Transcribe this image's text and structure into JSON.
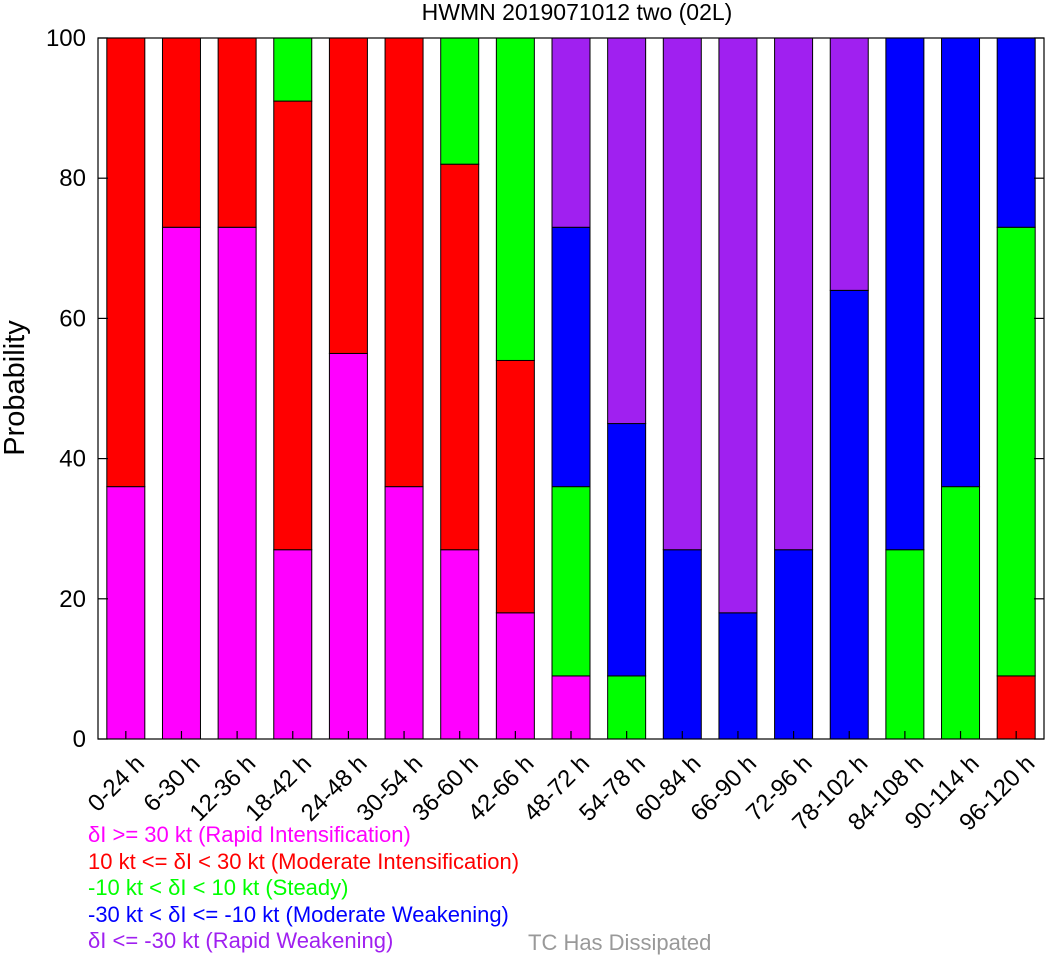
{
  "title": "HWMN 2019071012 two (02L)",
  "chart_data": {
    "type": "bar",
    "stacked": true,
    "title": "HWMN 2019071012 two (02L)",
    "ylabel": "Probability",
    "xlabel": "",
    "ylim": [
      0,
      100
    ],
    "yticks": [
      0,
      20,
      40,
      60,
      80,
      100
    ],
    "categories": [
      "0-24 h",
      "6-30 h",
      "12-36 h",
      "18-42 h",
      "24-48 h",
      "30-54 h",
      "36-60 h",
      "42-66 h",
      "48-72 h",
      "54-78 h",
      "60-84 h",
      "66-90 h",
      "72-96 h",
      "78-102 h",
      "84-108 h",
      "90-114 h",
      "96-120 h"
    ],
    "series": [
      {
        "name": "δI >= 30 kt (Rapid Intensification)",
        "color": "#ff00ff",
        "values": [
          36,
          73,
          73,
          27,
          55,
          36,
          27,
          18,
          9,
          0,
          0,
          0,
          0,
          0,
          0,
          0,
          0
        ]
      },
      {
        "name": "10 kt <= δI < 30 kt (Moderate Intensification)",
        "color": "#ff0000",
        "values": [
          64,
          27,
          27,
          64,
          45,
          64,
          55,
          36,
          0,
          0,
          0,
          0,
          0,
          0,
          0,
          0,
          9
        ]
      },
      {
        "name": "-10 kt < δI < 10 kt (Steady)",
        "color": "#00ff00",
        "values": [
          0,
          0,
          0,
          9,
          0,
          0,
          18,
          46,
          27,
          9,
          0,
          0,
          0,
          0,
          27,
          36,
          64
        ]
      },
      {
        "name": "-30 kt < δI <= -10 kt (Moderate Weakening)",
        "color": "#0000ff",
        "values": [
          0,
          0,
          0,
          0,
          0,
          0,
          0,
          0,
          37,
          36,
          27,
          18,
          27,
          64,
          73,
          64,
          27
        ]
      },
      {
        "name": "δI <= -30 kt (Rapid Weakening)",
        "color": "#a020f0",
        "values": [
          0,
          0,
          0,
          0,
          0,
          0,
          0,
          0,
          27,
          55,
          73,
          82,
          73,
          36,
          0,
          0,
          0
        ]
      }
    ],
    "extra_legend": {
      "label": "TC Has Dissipated",
      "color": "#999999"
    },
    "grid": false,
    "legend_position": "bottom-left"
  }
}
